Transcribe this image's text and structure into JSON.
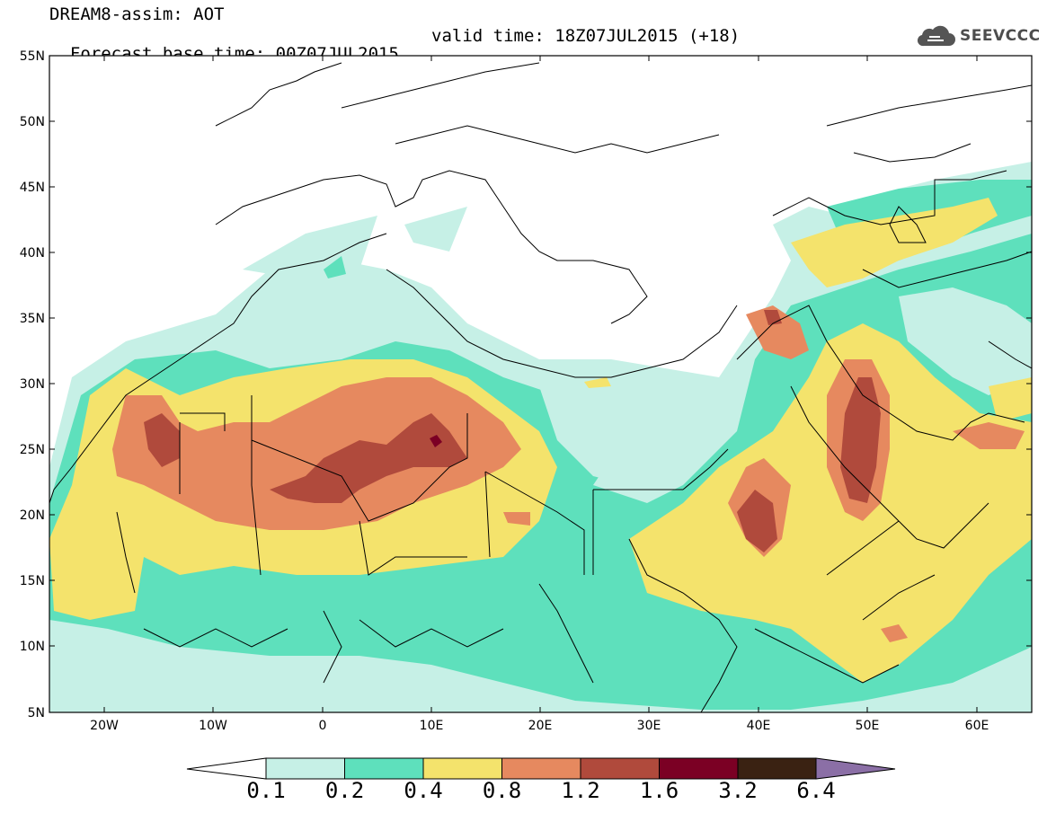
{
  "header": {
    "line1": "DREAM8-assim: AOT",
    "line2_left": "Forecast base time: 00Z07JUL2015",
    "line2_right": "valid time: 18Z07JUL2015 (+18)"
  },
  "logo": {
    "text": "SEEVCCC",
    "icon": "cloud-icon"
  },
  "map": {
    "lat_labels": [
      "55N",
      "50N",
      "45N",
      "40N",
      "35N",
      "30N",
      "25N",
      "20N",
      "15N",
      "10N",
      "5N"
    ],
    "lon_labels": [
      "20W",
      "10W",
      "0",
      "10E",
      "20E",
      "30E",
      "40E",
      "50E",
      "60E"
    ]
  },
  "colorbar": {
    "levels": [
      "0.1",
      "0.2",
      "0.4",
      "0.8",
      "1.2",
      "1.6",
      "3.2",
      "6.4"
    ],
    "colors": [
      "#ffffff",
      "#c6f0e6",
      "#5ee0bc",
      "#f4e36c",
      "#e6895f",
      "#b04a3c",
      "#7b0024",
      "#3a2212",
      "#8b6fa6"
    ]
  },
  "colors": {
    "aot_0_1": "#c6f0e6",
    "aot_0_2": "#5ee0bc",
    "aot_0_4": "#f4e36c",
    "aot_0_8": "#e6895f",
    "aot_1_2": "#b04a3c",
    "aot_1_6": "#7b0024"
  }
}
